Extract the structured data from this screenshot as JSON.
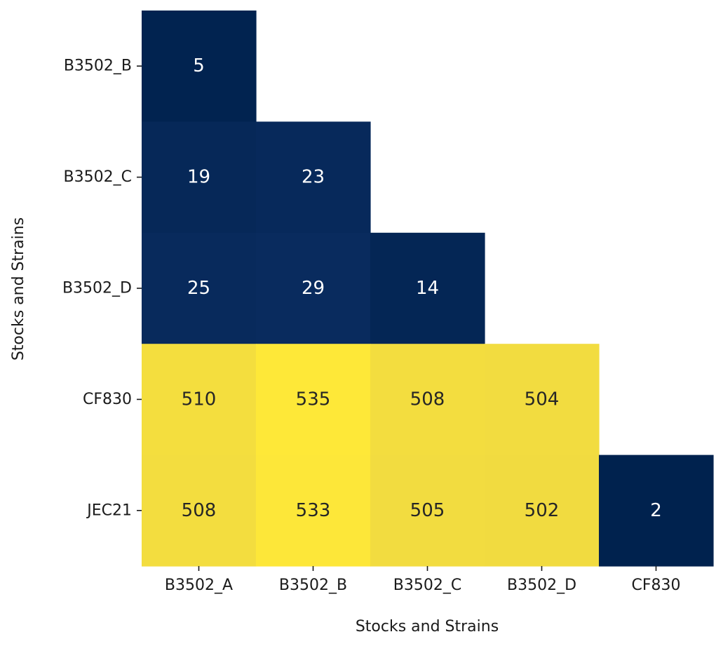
{
  "chart_data": {
    "type": "heatmap",
    "title": "",
    "xlabel": "Stocks and Strains",
    "ylabel": "Stocks and Strains",
    "x_categories": [
      "B3502_A",
      "B3502_B",
      "B3502_C",
      "B3502_D",
      "CF830"
    ],
    "y_categories": [
      "B3502_B",
      "B3502_C",
      "B3502_D",
      "CF830",
      "JEC21"
    ],
    "values": [
      [
        5,
        null,
        null,
        null,
        null
      ],
      [
        19,
        23,
        null,
        null,
        null
      ],
      [
        25,
        29,
        14,
        null,
        null
      ],
      [
        510,
        535,
        508,
        504,
        null
      ],
      [
        508,
        533,
        505,
        502,
        2
      ]
    ],
    "value_range": [
      2,
      535
    ],
    "colormap": "cividis",
    "color_low": "#00224e",
    "color_high": "#fee838",
    "mask": "upper-triangle",
    "annotated": true,
    "colorbar": false,
    "grid": false
  }
}
